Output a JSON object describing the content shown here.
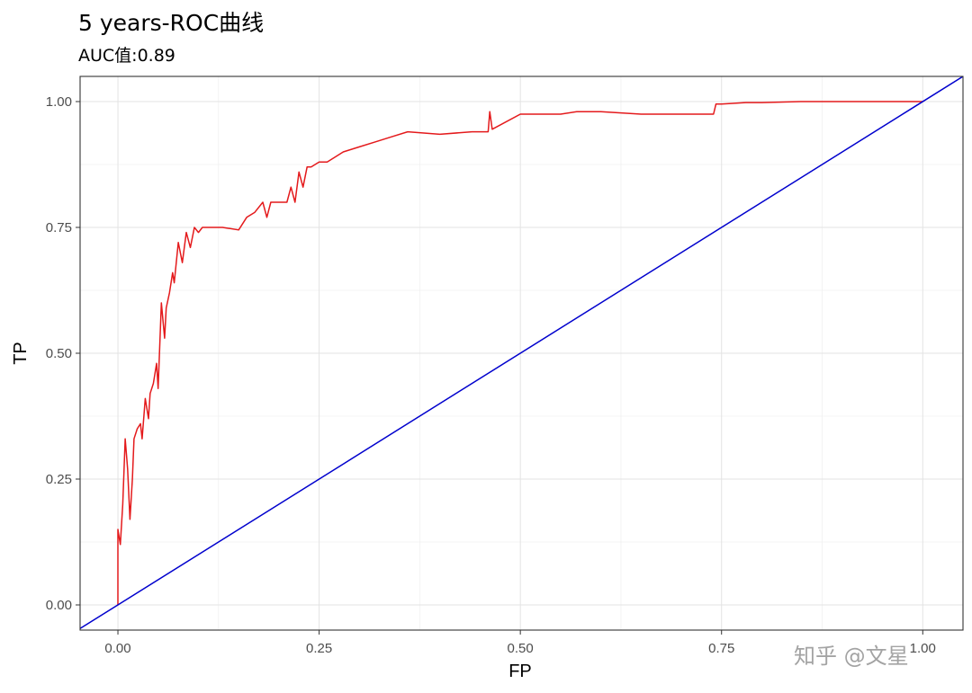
{
  "chart_data": {
    "type": "line",
    "title": "5 years-ROC曲线",
    "subtitle": "AUC值:0.89",
    "xlabel": "FP",
    "ylabel": "TP",
    "xlim": [
      -0.047,
      1.05
    ],
    "ylim": [
      -0.05,
      1.05
    ],
    "x_ticks": [
      "0.00",
      "0.25",
      "0.50",
      "0.75",
      "1.00"
    ],
    "y_ticks": [
      "0.00",
      "0.25",
      "0.50",
      "0.75",
      "1.00"
    ],
    "grid": true,
    "series": [
      {
        "color": "#e41a1c",
        "x": [
          0.0,
          0.0,
          0.003,
          0.006,
          0.009,
          0.012,
          0.015,
          0.018,
          0.02,
          0.024,
          0.028,
          0.03,
          0.034,
          0.038,
          0.04,
          0.044,
          0.048,
          0.05,
          0.054,
          0.058,
          0.06,
          0.064,
          0.068,
          0.07,
          0.075,
          0.08,
          0.085,
          0.09,
          0.095,
          0.1,
          0.105,
          0.11,
          0.13,
          0.15,
          0.16,
          0.17,
          0.18,
          0.185,
          0.19,
          0.2,
          0.21,
          0.215,
          0.22,
          0.225,
          0.23,
          0.235,
          0.24,
          0.25,
          0.26,
          0.27,
          0.28,
          0.3,
          0.32,
          0.34,
          0.36,
          0.4,
          0.44,
          0.46,
          0.462,
          0.465,
          0.5,
          0.55,
          0.57,
          0.6,
          0.65,
          0.7,
          0.73,
          0.74,
          0.743,
          0.75,
          0.78,
          0.8,
          0.85,
          0.9,
          0.95,
          1.0
        ],
        "y": [
          0.0,
          0.15,
          0.12,
          0.2,
          0.33,
          0.27,
          0.17,
          0.25,
          0.33,
          0.35,
          0.36,
          0.33,
          0.41,
          0.37,
          0.42,
          0.44,
          0.48,
          0.43,
          0.6,
          0.53,
          0.59,
          0.62,
          0.66,
          0.64,
          0.72,
          0.68,
          0.74,
          0.71,
          0.75,
          0.74,
          0.75,
          0.75,
          0.75,
          0.745,
          0.77,
          0.78,
          0.8,
          0.77,
          0.8,
          0.8,
          0.8,
          0.83,
          0.8,
          0.86,
          0.83,
          0.87,
          0.87,
          0.88,
          0.88,
          0.89,
          0.9,
          0.91,
          0.92,
          0.93,
          0.94,
          0.935,
          0.94,
          0.94,
          0.98,
          0.945,
          0.975,
          0.975,
          0.98,
          0.98,
          0.975,
          0.975,
          0.975,
          0.975,
          0.995,
          0.995,
          0.998,
          0.998,
          1.0,
          1.0,
          1.0,
          1.0
        ]
      },
      {
        "color": "#0000cd",
        "x": [
          -0.047,
          1.05
        ],
        "y": [
          -0.047,
          1.05
        ]
      }
    ]
  },
  "watermark": "知乎 @文星"
}
